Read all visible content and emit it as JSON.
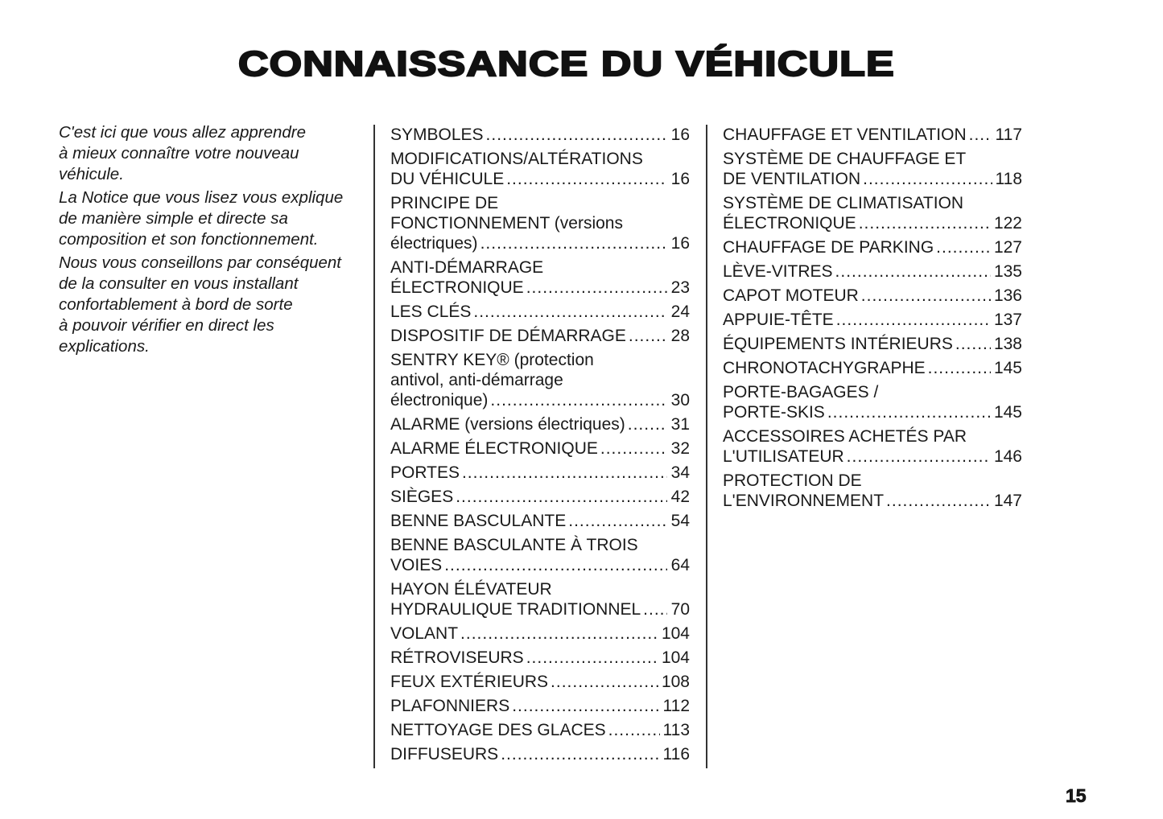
{
  "title": "CONNAISSANCE DU VÉHICULE",
  "intro": [
    [
      "C'est ici que vous allez apprendre",
      "à mieux connaître votre nouveau",
      "véhicule."
    ],
    [
      "La Notice que vous lisez vous explique",
      "de manière simple et directe sa",
      "composition et son fonctionnement."
    ],
    [
      "Nous vous conseillons par conséquent",
      "de la consulter en vous installant",
      "confortablement à bord de sorte",
      "à pouvoir vérifier en direct les",
      "explications."
    ]
  ],
  "toc_columns": [
    [
      {
        "lines": [
          "SYMBOLES"
        ],
        "page": "16"
      },
      {
        "lines": [
          "MODIFICATIONS/ALTÉRATIONS",
          "DU VÉHICULE"
        ],
        "page": "16"
      },
      {
        "lines": [
          "PRINCIPE  DE",
          "FONCTIONNEMENT (versions",
          "électriques)"
        ],
        "page": "16"
      },
      {
        "lines": [
          "ANTI-DÉMARRAGE",
          "ÉLECTRONIQUE"
        ],
        "page": "23"
      },
      {
        "lines": [
          "LES CLÉS"
        ],
        "page": "24"
      },
      {
        "lines": [
          "DISPOSITIF DE DÉMARRAGE"
        ],
        "page": "28"
      },
      {
        "lines": [
          "SENTRY KEY® (protection",
          "antivol,  anti-démarrage",
          "électronique)"
        ],
        "page": "30"
      },
      {
        "lines": [
          "ALARME (versions électriques)"
        ],
        "page": "31"
      },
      {
        "lines": [
          "ALARME ÉLECTRONIQUE"
        ],
        "page": "32"
      },
      {
        "lines": [
          "PORTES"
        ],
        "page": "34"
      },
      {
        "lines": [
          "SIÈGES"
        ],
        "page": "42"
      },
      {
        "lines": [
          "BENNE BASCULANTE"
        ],
        "page": "54"
      },
      {
        "lines": [
          "BENNE BASCULANTE À TROIS",
          "VOIES"
        ],
        "page": "64"
      },
      {
        "lines": [
          "HAYON  ÉLÉVATEUR",
          "HYDRAULIQUE TRADITIONNEL"
        ],
        "page": "70"
      },
      {
        "lines": [
          "VOLANT"
        ],
        "page": "104"
      },
      {
        "lines": [
          "RÉTROVISEURS"
        ],
        "page": "104"
      },
      {
        "lines": [
          "FEUX EXTÉRIEURS"
        ],
        "page": "108"
      },
      {
        "lines": [
          "PLAFONNIERS"
        ],
        "page": "112"
      },
      {
        "lines": [
          "NETTOYAGE DES GLACES"
        ],
        "page": "113"
      },
      {
        "lines": [
          "DIFFUSEURS"
        ],
        "page": "116"
      }
    ],
    [
      {
        "lines": [
          "CHAUFFAGE ET VENTILATION"
        ],
        "page": "117"
      },
      {
        "lines": [
          "SYSTÈME DE CHAUFFAGE ET",
          "DE VENTILATION"
        ],
        "page": "118"
      },
      {
        "lines": [
          "SYSTÈME DE CLIMATISATION",
          "ÉLECTRONIQUE"
        ],
        "page": "122"
      },
      {
        "lines": [
          "CHAUFFAGE DE PARKING"
        ],
        "page": "127"
      },
      {
        "lines": [
          "LÈVE-VITRES"
        ],
        "page": "135"
      },
      {
        "lines": [
          "CAPOT MOTEUR"
        ],
        "page": "136"
      },
      {
        "lines": [
          "APPUIE-TÊTE"
        ],
        "page": "137"
      },
      {
        "lines": [
          "ÉQUIPEMENTS INTÉRIEURS"
        ],
        "page": "138"
      },
      {
        "lines": [
          "CHRONOTACHYGRAPHE"
        ],
        "page": "145"
      },
      {
        "lines": [
          "PORTE-BAGAGES /",
          "PORTE-SKIS"
        ],
        "page": "145"
      },
      {
        "lines": [
          "ACCESSOIRES ACHETÉS PAR",
          "L'UTILISATEUR"
        ],
        "page": "146"
      },
      {
        "lines": [
          "PROTECTION  DE",
          "L'ENVIRONNEMENT"
        ],
        "page": "147"
      }
    ]
  ],
  "page_number": "15"
}
